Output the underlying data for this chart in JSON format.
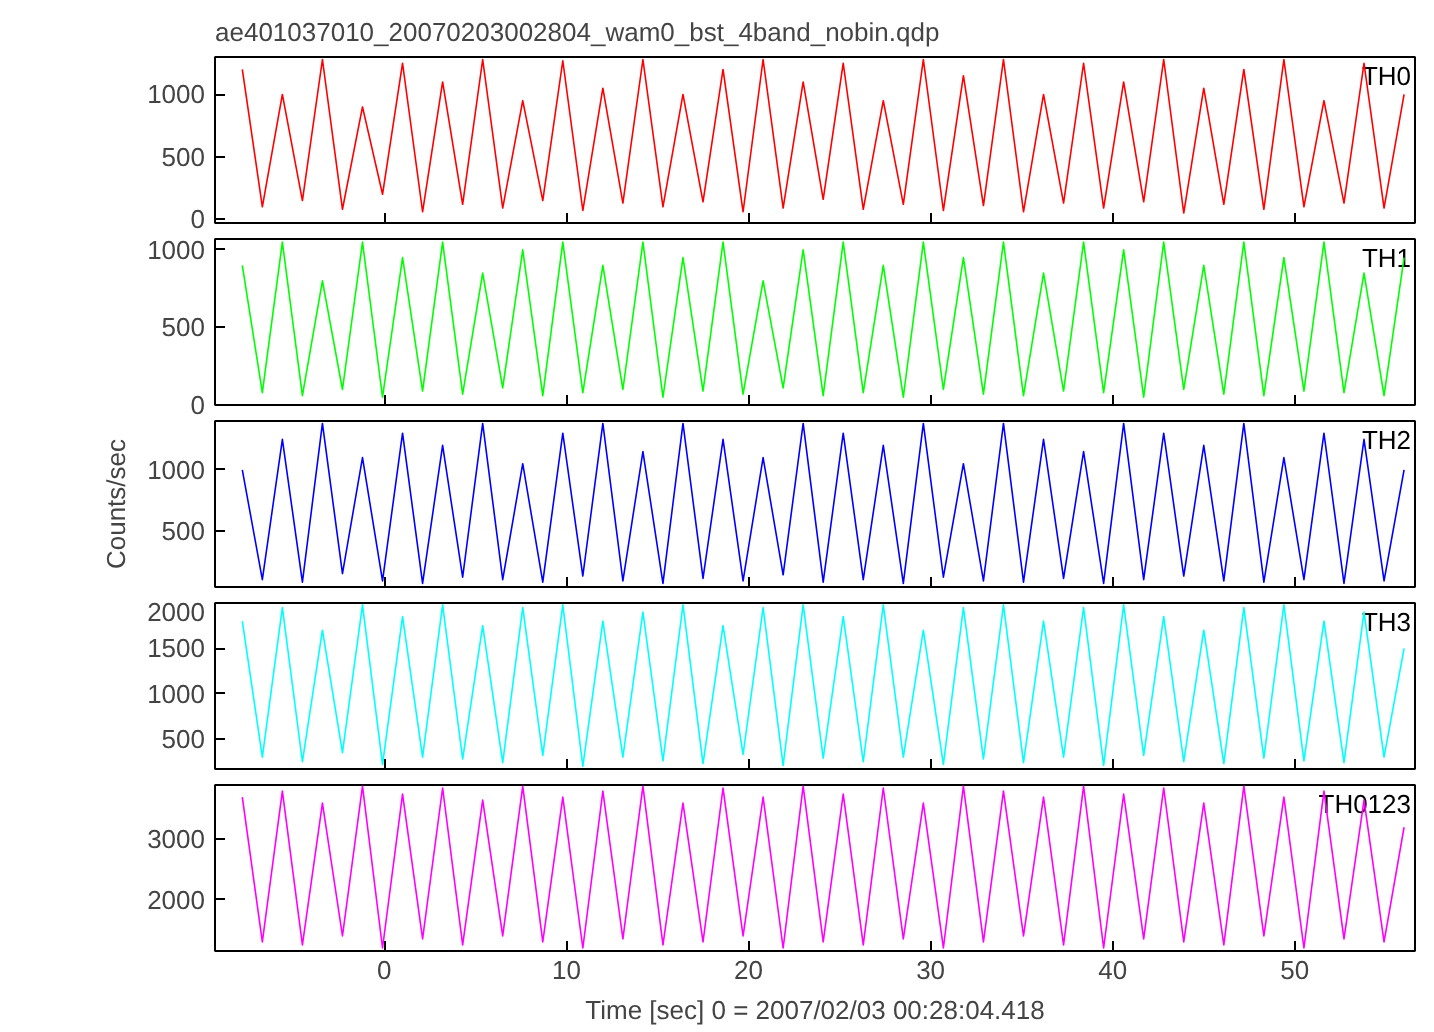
{
  "chart_data": [
    {
      "type": "line",
      "title": "ae401037010_20070203002804_wam0_bst_4band_nobin.qdp",
      "xlim": [
        -9.3,
        56.6
      ],
      "xticks": [
        0,
        10,
        20,
        30,
        40,
        50
      ],
      "ylim": [
        -30,
        1300
      ],
      "yticks": [
        0,
        500,
        1000
      ],
      "tick_labels": "y",
      "x": [
        -7.8,
        -6.7,
        -5.6,
        -4.5,
        -3.4,
        -2.3,
        -1.2,
        -0.1,
        1.0,
        2.1,
        3.2,
        4.3,
        5.4,
        6.5,
        7.6,
        8.7,
        9.8,
        10.9,
        12.0,
        13.1,
        14.2,
        15.3,
        16.4,
        17.5,
        18.6,
        19.7,
        20.8,
        21.9,
        23.0,
        24.1,
        25.2,
        26.3,
        27.4,
        28.5,
        29.6,
        30.7,
        31.8,
        32.9,
        34.0,
        35.1,
        36.2,
        37.3,
        38.4,
        39.5,
        40.6,
        41.7,
        42.8,
        43.9,
        45.0,
        46.1,
        47.2,
        48.3,
        49.4,
        50.5,
        51.6,
        52.7,
        53.8,
        54.9,
        56.0
      ],
      "series": [
        {
          "name": "TH0",
          "color": "#ff0000",
          "values": [
            1200,
            100,
            1000,
            150,
            1280,
            80,
            900,
            200,
            1250,
            60,
            1100,
            120,
            1280,
            90,
            950,
            150,
            1270,
            70,
            1050,
            130,
            1280,
            100,
            1000,
            140,
            1200,
            60,
            1280,
            90,
            1100,
            160,
            1250,
            80,
            950,
            120,
            1280,
            70,
            1150,
            110,
            1280,
            60,
            1000,
            130,
            1250,
            90,
            1100,
            140,
            1280,
            50,
            1050,
            120,
            1200,
            80,
            1280,
            100,
            950,
            130,
            1250,
            90,
            1000
          ]
        }
      ]
    },
    {
      "type": "line",
      "xlim": [
        -9.3,
        56.6
      ],
      "xticks": [
        0,
        10,
        20,
        30,
        40,
        50
      ],
      "ylim": [
        0,
        1070
      ],
      "yticks": [
        0,
        500,
        1000
      ],
      "tick_labels": "y",
      "x": [
        -7.8,
        -6.7,
        -5.6,
        -4.5,
        -3.4,
        -2.3,
        -1.2,
        -0.1,
        1.0,
        2.1,
        3.2,
        4.3,
        5.4,
        6.5,
        7.6,
        8.7,
        9.8,
        10.9,
        12.0,
        13.1,
        14.2,
        15.3,
        16.4,
        17.5,
        18.6,
        19.7,
        20.8,
        21.9,
        23.0,
        24.1,
        25.2,
        26.3,
        27.4,
        28.5,
        29.6,
        30.7,
        31.8,
        32.9,
        34.0,
        35.1,
        36.2,
        37.3,
        38.4,
        39.5,
        40.6,
        41.7,
        42.8,
        43.9,
        45.0,
        46.1,
        47.2,
        48.3,
        49.4,
        50.5,
        51.6,
        52.7,
        53.8,
        54.9,
        56.0
      ],
      "series": [
        {
          "name": "TH1",
          "color": "#00ff00",
          "values": [
            900,
            80,
            1050,
            60,
            800,
            100,
            1050,
            50,
            950,
            90,
            1050,
            70,
            850,
            110,
            1000,
            60,
            1050,
            80,
            900,
            100,
            1050,
            50,
            950,
            90,
            1050,
            70,
            800,
            110,
            1000,
            60,
            1050,
            80,
            900,
            50,
            1050,
            100,
            950,
            70,
            1050,
            60,
            850,
            90,
            1050,
            80,
            1000,
            50,
            1050,
            100,
            900,
            70,
            1050,
            60,
            950,
            90,
            1050,
            80,
            850,
            60,
            950
          ]
        }
      ]
    },
    {
      "type": "line",
      "ylabel": "Counts/sec",
      "xlim": [
        -9.3,
        56.6
      ],
      "xticks": [
        0,
        10,
        20,
        30,
        40,
        50
      ],
      "ylim": [
        40,
        1400
      ],
      "yticks": [
        500,
        1000
      ],
      "tick_labels": "y",
      "x": [
        -7.8,
        -6.7,
        -5.6,
        -4.5,
        -3.4,
        -2.3,
        -1.2,
        -0.1,
        1.0,
        2.1,
        3.2,
        4.3,
        5.4,
        6.5,
        7.6,
        8.7,
        9.8,
        10.9,
        12.0,
        13.1,
        14.2,
        15.3,
        16.4,
        17.5,
        18.6,
        19.7,
        20.8,
        21.9,
        23.0,
        24.1,
        25.2,
        26.3,
        27.4,
        28.5,
        29.6,
        30.7,
        31.8,
        32.9,
        34.0,
        35.1,
        36.2,
        37.3,
        38.4,
        39.5,
        40.6,
        41.7,
        42.8,
        43.9,
        45.0,
        46.1,
        47.2,
        48.3,
        49.4,
        50.5,
        51.6,
        52.7,
        53.8,
        54.9,
        56.0
      ],
      "series": [
        {
          "name": "TH2",
          "color": "#0000ff",
          "values": [
            1000,
            100,
            1250,
            80,
            1380,
            150,
            1100,
            90,
            1300,
            70,
            1200,
            120,
            1380,
            100,
            1050,
            80,
            1300,
            130,
            1380,
            90,
            1150,
            70,
            1380,
            110,
            1250,
            90,
            1100,
            140,
            1380,
            80,
            1300,
            100,
            1200,
            70,
            1380,
            120,
            1050,
            90,
            1380,
            80,
            1250,
            110,
            1150,
            70,
            1380,
            100,
            1300,
            130,
            1200,
            90,
            1380,
            80,
            1100,
            100,
            1300,
            70,
            1250,
            90,
            1000
          ]
        }
      ]
    },
    {
      "type": "line",
      "xlim": [
        -9.3,
        56.6
      ],
      "xticks": [
        0,
        10,
        20,
        30,
        40,
        50
      ],
      "ylim": [
        170,
        2000
      ],
      "yticks": [
        500,
        1000,
        1500,
        2000
      ],
      "tick_labels": "y",
      "x": [
        -7.8,
        -6.7,
        -5.6,
        -4.5,
        -3.4,
        -2.3,
        -1.2,
        -0.1,
        1.0,
        2.1,
        3.2,
        4.3,
        5.4,
        6.5,
        7.6,
        8.7,
        9.8,
        10.9,
        12.0,
        13.1,
        14.2,
        15.3,
        16.4,
        17.5,
        18.6,
        19.7,
        20.8,
        21.9,
        23.0,
        24.1,
        25.2,
        26.3,
        27.4,
        28.5,
        29.6,
        30.7,
        31.8,
        32.9,
        34.0,
        35.1,
        36.2,
        37.3,
        38.4,
        39.5,
        40.6,
        41.7,
        42.8,
        43.9,
        45.0,
        46.1,
        47.2,
        48.3,
        49.4,
        50.5,
        51.6,
        52.7,
        53.8,
        54.9,
        56.0
      ],
      "series": [
        {
          "name": "TH3",
          "color": "#00ffff",
          "values": [
            1800,
            300,
            1950,
            250,
            1700,
            350,
            1980,
            220,
            1850,
            300,
            1980,
            280,
            1750,
            240,
            1950,
            320,
            1980,
            200,
            1800,
            300,
            1900,
            260,
            1980,
            230,
            1750,
            330,
            1950,
            210,
            1980,
            290,
            1850,
            250,
            1980,
            300,
            1700,
            220,
            1950,
            280,
            1980,
            240,
            1800,
            300,
            1950,
            210,
            1980,
            320,
            1850,
            250,
            1700,
            230,
            1950,
            290,
            1980,
            260,
            1800,
            240,
            1900,
            300,
            1500
          ]
        }
      ]
    },
    {
      "type": "line",
      "xlabel": "Time [sec] 0 = 2007/02/03 00:28:04.418",
      "xlim": [
        -9.3,
        56.6
      ],
      "xticks": [
        0,
        10,
        20,
        30,
        40,
        50
      ],
      "ylim": [
        1150,
        3900
      ],
      "yticks": [
        2000,
        3000
      ],
      "x": [
        -7.8,
        -6.7,
        -5.6,
        -4.5,
        -3.4,
        -2.3,
        -1.2,
        -0.1,
        1.0,
        2.1,
        3.2,
        4.3,
        5.4,
        6.5,
        7.6,
        8.7,
        9.8,
        10.9,
        12.0,
        13.1,
        14.2,
        15.3,
        16.4,
        17.5,
        18.6,
        19.7,
        20.8,
        21.9,
        23.0,
        24.1,
        25.2,
        26.3,
        27.4,
        28.5,
        29.6,
        30.7,
        31.8,
        32.9,
        34.0,
        35.1,
        36.2,
        37.3,
        38.4,
        39.5,
        40.6,
        41.7,
        42.8,
        43.9,
        45.0,
        46.1,
        47.2,
        48.3,
        49.4,
        50.5,
        51.6,
        52.7,
        53.8,
        54.9,
        56.0
      ],
      "series": [
        {
          "name": "TH0123",
          "color": "#ff00ff",
          "values": [
            3700,
            1300,
            3800,
            1250,
            3600,
            1400,
            3880,
            1200,
            3750,
            1350,
            3850,
            1250,
            3650,
            1400,
            3880,
            1300,
            3700,
            1200,
            3800,
            1350,
            3880,
            1250,
            3600,
            1300,
            3850,
            1400,
            3700,
            1200,
            3880,
            1300,
            3750,
            1250,
            3850,
            1350,
            3600,
            1200,
            3880,
            1300,
            3800,
            1400,
            3700,
            1250,
            3880,
            1200,
            3750,
            1350,
            3850,
            1300,
            3600,
            1250,
            3880,
            1400,
            3700,
            1200,
            3800,
            1350,
            3650,
            1300,
            3200
          ]
        }
      ]
    }
  ]
}
